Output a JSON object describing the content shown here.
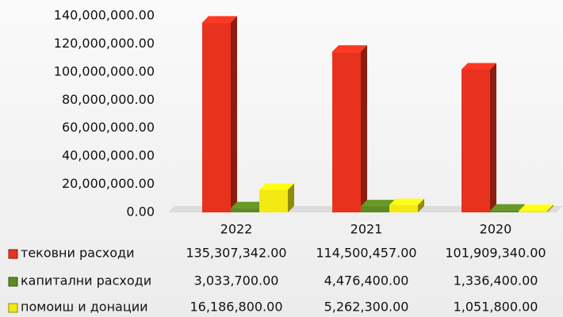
{
  "chart_data": {
    "type": "bar3d",
    "categories": [
      "2022",
      "2021",
      "2020"
    ],
    "series": [
      {
        "name": "тековни расходи",
        "color": "#e8321e",
        "values": [
          135307342,
          114500457,
          101909340
        ],
        "value_labels": [
          "135,307,342.00",
          "114,500,457.00",
          "101,909,340.00"
        ]
      },
      {
        "name": "капитални расходи",
        "color": "#5f8a22",
        "values": [
          3033700,
          4476400,
          1336400
        ],
        "value_labels": [
          "3,033,700.00",
          "4,476,400.00",
          "1,336,400.00"
        ]
      },
      {
        "name": "помоиш и донации",
        "color": "#f2ea12",
        "values": [
          16186800,
          5262300,
          1051800
        ],
        "value_labels": [
          "16,186,800.00",
          "5,262,300.00",
          "1,051,800.00"
        ]
      }
    ],
    "ylim": [
      0,
      140000000
    ],
    "yticks": [
      {
        "value": 0,
        "label": "0.00"
      },
      {
        "value": 20000000,
        "label": "20,000,000.00"
      },
      {
        "value": 40000000,
        "label": "40,000,000.00"
      },
      {
        "value": 60000000,
        "label": "60,000,000.00"
      },
      {
        "value": 80000000,
        "label": "80,000,000.00"
      },
      {
        "value": 100000000,
        "label": "100,000,000.00"
      },
      {
        "value": 120000000,
        "label": "120,000,000.00"
      },
      {
        "value": 140000000,
        "label": "140,000,000.00"
      }
    ]
  }
}
